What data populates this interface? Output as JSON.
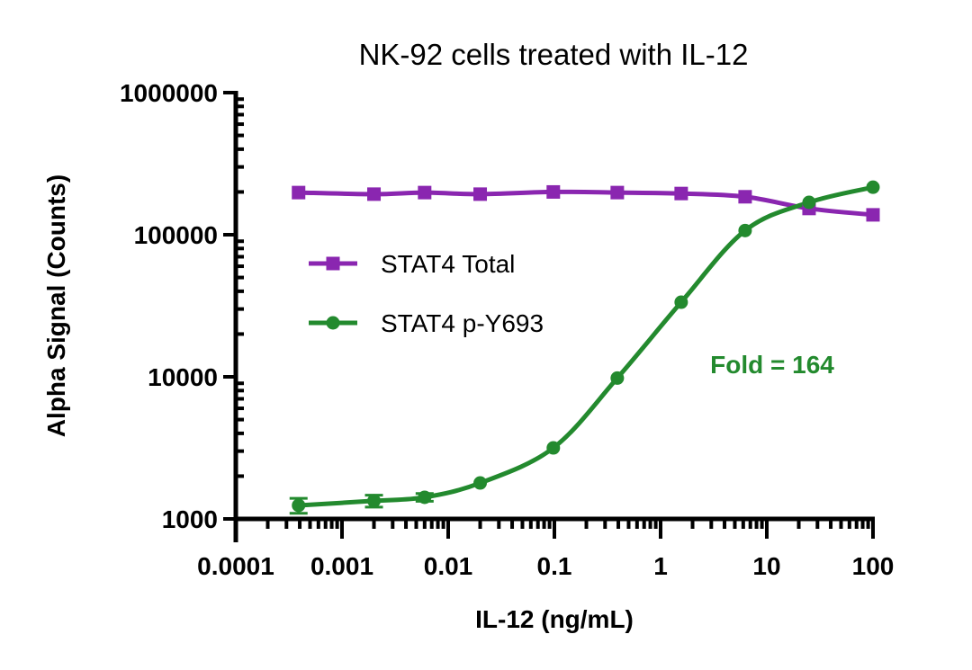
{
  "chart_data": {
    "type": "line",
    "title": "NK-92 cells treated with IL-12",
    "xlabel": "IL-12 (ng/mL)",
    "ylabel": "Alpha Signal (Counts)",
    "xscale": "log",
    "yscale": "log",
    "xlim": [
      0.0001,
      100
    ],
    "ylim": [
      1000,
      1000000
    ],
    "xticks": [
      {
        "value": 0.0001,
        "label": "0.0001"
      },
      {
        "value": 0.001,
        "label": "0.001"
      },
      {
        "value": 0.01,
        "label": "0.01"
      },
      {
        "value": 0.1,
        "label": "0.1"
      },
      {
        "value": 1,
        "label": "1"
      },
      {
        "value": 10,
        "label": "10"
      },
      {
        "value": 100,
        "label": "100"
      }
    ],
    "yticks": [
      {
        "value": 1000,
        "label": "1000"
      },
      {
        "value": 10000,
        "label": "10000"
      },
      {
        "value": 100000,
        "label": "100000"
      },
      {
        "value": 1000000,
        "label": "1000000"
      }
    ],
    "grid": false,
    "legend_position": "center-left",
    "series": [
      {
        "name": "STAT4 Total",
        "color": "#8a26b0",
        "marker": "square",
        "x": [
          0.00039,
          0.002,
          0.006,
          0.02,
          0.0977,
          0.391,
          1.5625,
          6.25,
          25,
          100
        ],
        "y": [
          198000,
          193000,
          198000,
          193000,
          200000,
          198000,
          195000,
          185000,
          153000,
          138000
        ],
        "error": [
          0,
          0,
          0,
          0,
          0,
          0,
          0,
          0,
          0,
          0
        ]
      },
      {
        "name": "STAT4 p-Y693",
        "color": "#238a2e",
        "marker": "circle",
        "x": [
          0.00039,
          0.002,
          0.006,
          0.02,
          0.0977,
          0.391,
          1.5625,
          6.25,
          25,
          100
        ],
        "y": [
          1245,
          1340,
          1420,
          1790,
          3160,
          9800,
          33500,
          107000,
          169000,
          216000
        ],
        "error": [
          150,
          130,
          90,
          0,
          0,
          0,
          0,
          0,
          0,
          0
        ]
      }
    ],
    "annotations": [
      {
        "text": "Fold = 164",
        "color": "#238a2e",
        "x": 3.5,
        "y": 11500
      }
    ]
  }
}
